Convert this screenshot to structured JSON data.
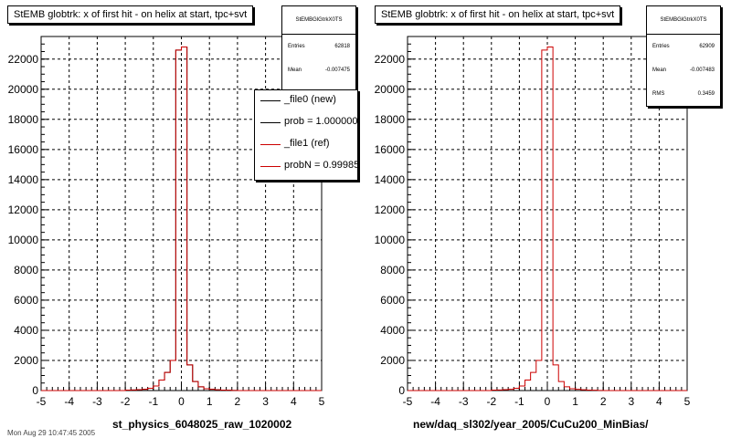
{
  "chart_data": [
    {
      "type": "histogram",
      "title": "StEMB globtrk: x of first hit - on helix at start, tpc+svt",
      "xlabel": "st_physics_6048025_raw_1020002",
      "xlim": [
        -5,
        5
      ],
      "ylim": [
        0,
        23500
      ],
      "x_ticks": [
        "-5",
        "-4",
        "-3",
        "-2",
        "-1",
        "0",
        "1",
        "2",
        "3",
        "4",
        "5"
      ],
      "y_ticks": [
        "0",
        "2000",
        "4000",
        "6000",
        "8000",
        "10000",
        "12000",
        "14000",
        "16000",
        "18000",
        "20000",
        "22000"
      ],
      "grid": true,
      "bin_edges": [
        -5,
        -4.8,
        -4.6,
        -4.4,
        -4.2,
        -4.0,
        -3.8,
        -3.6,
        -3.4,
        -3.2,
        -3.0,
        -2.8,
        -2.6,
        -2.4,
        -2.2,
        -2.0,
        -1.8,
        -1.6,
        -1.4,
        -1.2,
        -1.0,
        -0.8,
        -0.6,
        -0.4,
        -0.2,
        0.0,
        0.2,
        0.4,
        0.6,
        0.8,
        1.0,
        1.2,
        1.4,
        1.6,
        1.8,
        2.0,
        2.2,
        2.4,
        2.6,
        2.8,
        3.0,
        3.2,
        3.4,
        3.6,
        3.8,
        4.0,
        4.2,
        4.4,
        4.6,
        4.8,
        5.0
      ],
      "series": [
        {
          "name": "_file0 (new)",
          "color": "#000000",
          "values": [
            0,
            0,
            0,
            0,
            0,
            0,
            0,
            0,
            0,
            0,
            0,
            0,
            0,
            0,
            0,
            30,
            40,
            60,
            80,
            150,
            300,
            700,
            1200,
            2000,
            22600,
            22800,
            1700,
            600,
            250,
            120,
            80,
            50,
            30,
            20,
            10,
            0,
            0,
            0,
            0,
            0,
            0,
            0,
            0,
            0,
            0,
            0,
            0,
            0,
            0,
            0
          ]
        },
        {
          "name": "_file1 (ref)",
          "color": "#cc0000",
          "values": [
            0,
            0,
            0,
            0,
            0,
            0,
            0,
            0,
            0,
            0,
            0,
            0,
            0,
            0,
            0,
            30,
            40,
            60,
            80,
            150,
            300,
            700,
            1200,
            2000,
            22600,
            22800,
            1700,
            600,
            250,
            120,
            80,
            50,
            30,
            20,
            10,
            0,
            0,
            0,
            0,
            0,
            0,
            0,
            0,
            0,
            0,
            0,
            0,
            0,
            0,
            0
          ]
        }
      ],
      "stats": {
        "name": "StEMBGlGtrkX0TS",
        "rows": [
          {
            "label": "Entries",
            "value": "62818"
          },
          {
            "label": "Mean",
            "value": "-0.007475"
          }
        ]
      },
      "legend": [
        {
          "label": "_file0 (new)",
          "color": "#000000"
        },
        {
          "label": "prob = 1.000000",
          "color": "#000000"
        },
        {
          "label": "_file1 (ref)",
          "color": "#cc0000"
        },
        {
          "label": "probN = 0.999850",
          "color": "#cc0000"
        }
      ]
    },
    {
      "type": "histogram",
      "title": "StEMB globtrk: x of first hit - on helix at start, tpc+svt",
      "xlabel": "new/daq_sl302/year_2005/CuCu200_MinBias/",
      "xlim": [
        -5,
        5
      ],
      "ylim": [
        0,
        23500
      ],
      "x_ticks": [
        "-5",
        "-4",
        "-3",
        "-2",
        "-1",
        "0",
        "1",
        "2",
        "3",
        "4",
        "5"
      ],
      "y_ticks": [
        "0",
        "2000",
        "4000",
        "6000",
        "8000",
        "10000",
        "12000",
        "14000",
        "16000",
        "18000",
        "20000",
        "22000"
      ],
      "grid": true,
      "bin_edges": [
        -5,
        -4.8,
        -4.6,
        -4.4,
        -4.2,
        -4.0,
        -3.8,
        -3.6,
        -3.4,
        -3.2,
        -3.0,
        -2.8,
        -2.6,
        -2.4,
        -2.2,
        -2.0,
        -1.8,
        -1.6,
        -1.4,
        -1.2,
        -1.0,
        -0.8,
        -0.6,
        -0.4,
        -0.2,
        0.0,
        0.2,
        0.4,
        0.6,
        0.8,
        1.0,
        1.2,
        1.4,
        1.6,
        1.8,
        2.0,
        2.2,
        2.4,
        2.6,
        2.8,
        3.0,
        3.2,
        3.4,
        3.6,
        3.8,
        4.0,
        4.2,
        4.4,
        4.6,
        4.8,
        5.0
      ],
      "series": [
        {
          "name": "",
          "color": "#cc0000",
          "values": [
            0,
            0,
            0,
            0,
            0,
            0,
            0,
            0,
            0,
            0,
            0,
            0,
            0,
            0,
            0,
            30,
            40,
            60,
            80,
            150,
            300,
            700,
            1200,
            2000,
            22600,
            22800,
            1700,
            600,
            250,
            120,
            80,
            50,
            30,
            20,
            10,
            0,
            0,
            0,
            0,
            0,
            0,
            0,
            0,
            0,
            0,
            0,
            0,
            0,
            0,
            0
          ]
        }
      ],
      "stats": {
        "name": "StEMBGlGtrkX0TS",
        "rows": [
          {
            "label": "Entries",
            "value": "62909"
          },
          {
            "label": "Mean",
            "value": "-0.007483"
          },
          {
            "label": "RMS",
            "value": "0.3459"
          }
        ]
      }
    }
  ],
  "footer_text": "Mon Aug 29 10:47:45 2005"
}
